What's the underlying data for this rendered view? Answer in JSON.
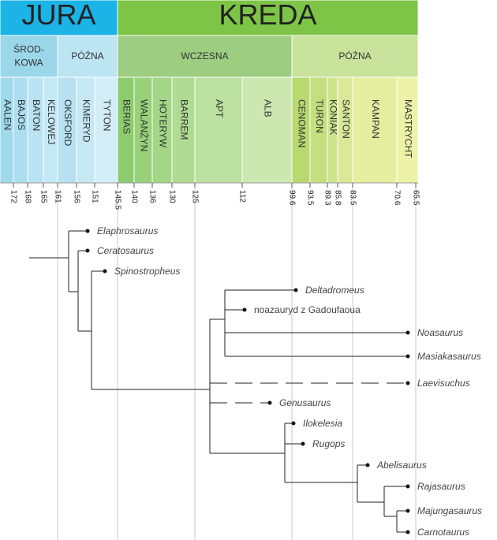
{
  "periods": [
    "JURA",
    "KREDA"
  ],
  "epochs": [
    [
      "ŚROD-",
      "KOWA"
    ],
    [
      "PÓŹNA"
    ],
    [
      "WCZESNA"
    ],
    [
      "PÓŹNA"
    ]
  ],
  "stages": [
    "AALEN",
    "BAJOS",
    "BATON",
    "KELOWEJ",
    "OKSFORD",
    "KIMERYD",
    "TYTON",
    "BERIAS",
    "WALANŻYN",
    "HOTERYW",
    "BARREM",
    "APT",
    "ALB",
    "CENOMAN",
    "TURON",
    "KONIAK",
    "SANTON",
    "KAMPAN",
    "MASTRYCHT"
  ],
  "ticks": [
    172,
    168,
    165,
    161,
    156,
    151,
    145.5,
    140,
    136,
    130,
    125,
    112,
    99.6,
    93.5,
    89.3,
    85.8,
    83.5,
    70.6,
    65.5
  ],
  "taxa": [
    "Elaphrosaurus",
    "Ceratosaurus",
    "Spinostropheus",
    "Deltadromeus",
    "noazauryd z Gadoufaoua",
    "Noasaurus",
    "Masiakasaurus",
    "Laevisuchus",
    "Genusaurus",
    "Ilokelesia",
    "Rugops",
    "Abelisaurus",
    "Rajasaurus",
    "Majungasaurus",
    "Carnotaurus"
  ]
}
